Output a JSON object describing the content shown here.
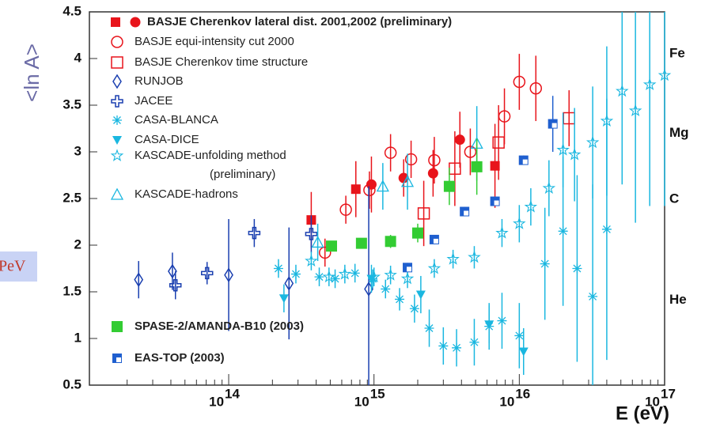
{
  "chart_data": {
    "type": "scatter",
    "x_label": "E (eV)",
    "y_label": "<ln A>",
    "side_label": "PeV",
    "xscale": "log",
    "xlim": [
      11000000000000.0,
      1e+17
    ],
    "ylim": [
      0.5,
      4.5
    ],
    "xticks": [
      {
        "value": 100000000000000.0,
        "label": "10",
        "exponent": "14"
      },
      {
        "value": 1000000000000000.0,
        "label": "10",
        "exponent": "15"
      },
      {
        "value": 1e+16,
        "label": "10",
        "exponent": "16"
      },
      {
        "value": 1e+17,
        "label": "10",
        "exponent": "17"
      }
    ],
    "yticks": [
      0.5,
      1,
      1.5,
      2,
      2.5,
      3,
      3.5,
      4,
      4.5
    ],
    "annotations": [
      {
        "text": "Fe",
        "y": 4.05
      },
      {
        "text": "Mg",
        "y": 3.2
      },
      {
        "text": "C",
        "y": 2.49
      },
      {
        "text": "He",
        "y": 1.41
      }
    ],
    "series": [
      {
        "name": "BASJE Cherenkov lateral dist. 2001,2002 (preliminary)",
        "color": "#e8141b",
        "markers": [
          "square",
          "square",
          "circle-filled",
          "circle-filled",
          "circle-filled",
          "circle-filled",
          "square"
        ],
        "x": [
          370000000000000.0,
          750000000000000.0,
          960000000000000.0,
          1600000000000000.0,
          2550000000000000.0,
          3900000000000000.0,
          6800000000000000.0
        ],
        "values": [
          2.27,
          2.6,
          2.65,
          2.72,
          2.77,
          3.13,
          2.85
        ],
        "errors": [
          0.3,
          0.3,
          0.3,
          0.2,
          0.25,
          0.3,
          0.45
        ]
      },
      {
        "name": "BASJE equi-intensity cut 2000",
        "color": "#e8141b",
        "marker": "circle-open",
        "x": [
          460000000000000.0,
          640000000000000.0,
          930000000000000.0,
          1300000000000000.0,
          1800000000000000.0,
          2600000000000000.0,
          4600000000000000.0,
          7900000000000000.0,
          1e+16,
          1.3e+16
        ],
        "values": [
          1.92,
          2.38,
          2.59,
          2.99,
          2.92,
          2.91,
          3.0,
          3.38,
          3.75,
          3.68
        ],
        "errors": [
          0.15,
          0.15,
          0.2,
          0.2,
          0.2,
          0.25,
          0.25,
          0.3,
          0.3,
          0.35
        ]
      },
      {
        "name": "BASJE Cherenkov time structure",
        "color": "#e8141b",
        "marker": "square-open",
        "x": [
          2200000000000000.0,
          3600000000000000.0,
          7200000000000000.0,
          2.2e+16
        ],
        "values": [
          2.34,
          2.82,
          3.1,
          3.36
        ],
        "errors": [
          0.35,
          0.4,
          0.4,
          0.3
        ]
      },
      {
        "name": "RUNJOB",
        "color": "#1a3fb0",
        "marker": "diamond",
        "x": [
          24000000000000.0,
          41000000000000.0,
          100000000000000.0,
          260000000000000.0,
          920000000000000.0
        ],
        "values": [
          1.63,
          1.72,
          1.68,
          1.59,
          1.53
        ],
        "errors": [
          0.2,
          0.2,
          0.6,
          0.6,
          1.1
        ]
      },
      {
        "name": "JACEE",
        "color": "#1a3fb0",
        "marker": "cross",
        "x": [
          43000000000000.0,
          71000000000000.0,
          150000000000000.0,
          370000000000000.0
        ],
        "values": [
          1.57,
          1.7,
          2.13,
          2.12
        ],
        "errors": [
          0.15,
          0.12,
          0.15,
          0.2
        ]
      },
      {
        "name": "CASA-BLANCA",
        "color": "#1ab7e0",
        "marker": "asterisk",
        "x": [
          220000000000000.0,
          290000000000000.0,
          420000000000000.0,
          540000000000000.0,
          740000000000000.0,
          980000000000000.0,
          1200000000000000.0,
          1500000000000000.0,
          1900000000000000.0,
          2400000000000000.0,
          3000000000000000.0,
          3700000000000000.0,
          4900000000000000.0,
          6200000000000000.0,
          7600000000000000.0,
          1e+16,
          1.5e+16,
          2e+16,
          2.5e+16,
          3.2e+16,
          4e+16
        ],
        "values": [
          1.75,
          1.69,
          1.66,
          1.64,
          1.7,
          1.64,
          1.53,
          1.42,
          1.32,
          1.11,
          0.92,
          0.9,
          0.96,
          1.13,
          1.19,
          1.03,
          1.8,
          2.15,
          1.75,
          1.45,
          2.17
        ],
        "errors": [
          0.1,
          0.1,
          0.1,
          0.1,
          0.1,
          0.1,
          0.1,
          0.12,
          0.15,
          0.2,
          0.2,
          0.2,
          0.25,
          0.25,
          0.3,
          0.35,
          0.6,
          0.8,
          1.0,
          1.2,
          1.4
        ]
      },
      {
        "name": "CASA-DICE",
        "color": "#1ab7e0",
        "marker": "triangle-down",
        "x": [
          240000000000000.0,
          960000000000000.0,
          2100000000000000.0,
          6200000000000000.0,
          1.07e+16
        ],
        "values": [
          1.43,
          1.64,
          1.47,
          1.15,
          0.86
        ],
        "errors": [
          0.15,
          0.15,
          0.2,
          0.2,
          0.25
        ]
      },
      {
        "name": "KASCADE-unfolding method",
        "name_note": "(preliminary)",
        "color": "#1ab7e0",
        "marker": "star",
        "x": [
          370000000000000.0,
          490000000000000.0,
          630000000000000.0,
          1000000000000000.0,
          1300000000000000.0,
          1700000000000000.0,
          2600000000000000.0,
          3500000000000000.0,
          4900000000000000.0,
          7600000000000000.0,
          1e+16,
          1.2e+16,
          1.6e+16,
          2e+16,
          2.4e+16,
          3.2e+16,
          4e+16,
          5.1e+16,
          6.3e+16,
          7.9e+16,
          1e+17
        ],
        "values": [
          1.83,
          1.66,
          1.69,
          1.66,
          1.68,
          1.64,
          1.75,
          1.85,
          1.87,
          2.13,
          2.23,
          2.41,
          2.61,
          3.02,
          2.97,
          3.1,
          3.33,
          3.65,
          3.44,
          3.72,
          3.82
        ],
        "errors": [
          0.1,
          0.1,
          0.1,
          0.1,
          0.1,
          0.1,
          0.1,
          0.1,
          0.12,
          0.15,
          0.2,
          0.2,
          0.3,
          0.4,
          0.5,
          0.6,
          0.8,
          1.0,
          1.2,
          1.3,
          1.4
        ]
      },
      {
        "name": "KASCADE-hadrons",
        "color": "#1ab7e0",
        "marker": "triangle-open",
        "x": [
          410000000000000.0,
          1150000000000000.0,
          1700000000000000.0,
          5100000000000000.0
        ],
        "values": [
          2.03,
          2.63,
          2.68,
          3.09
        ],
        "errors": [
          0.2,
          0.25,
          0.3,
          0.4
        ]
      },
      {
        "name": "SPASE-2/AMANDA-B10 (2003)",
        "color": "#33cc33",
        "marker": "square-big",
        "x": [
          510000000000000.0,
          820000000000000.0,
          1300000000000000.0,
          2000000000000000.0,
          3300000000000000.0,
          5100000000000000.0
        ],
        "values": [
          1.99,
          2.02,
          2.04,
          2.13,
          2.63,
          2.84
        ],
        "errors": [
          0.05,
          0.05,
          0.07,
          0.1,
          0.2,
          0.3
        ]
      },
      {
        "name": "EAS-TOP (2003)",
        "color": "#1f5fcf",
        "marker": "square-blue",
        "x": [
          1700000000000000.0,
          2600000000000000.0,
          4200000000000000.0,
          6800000000000000.0,
          1.07e+16,
          1.7e+16
        ],
        "values": [
          1.76,
          2.06,
          2.36,
          2.47,
          2.91,
          3.3
        ],
        "errors": [
          0.05,
          0.05,
          0.05,
          0.05,
          0.05,
          0.3
        ]
      }
    ]
  }
}
